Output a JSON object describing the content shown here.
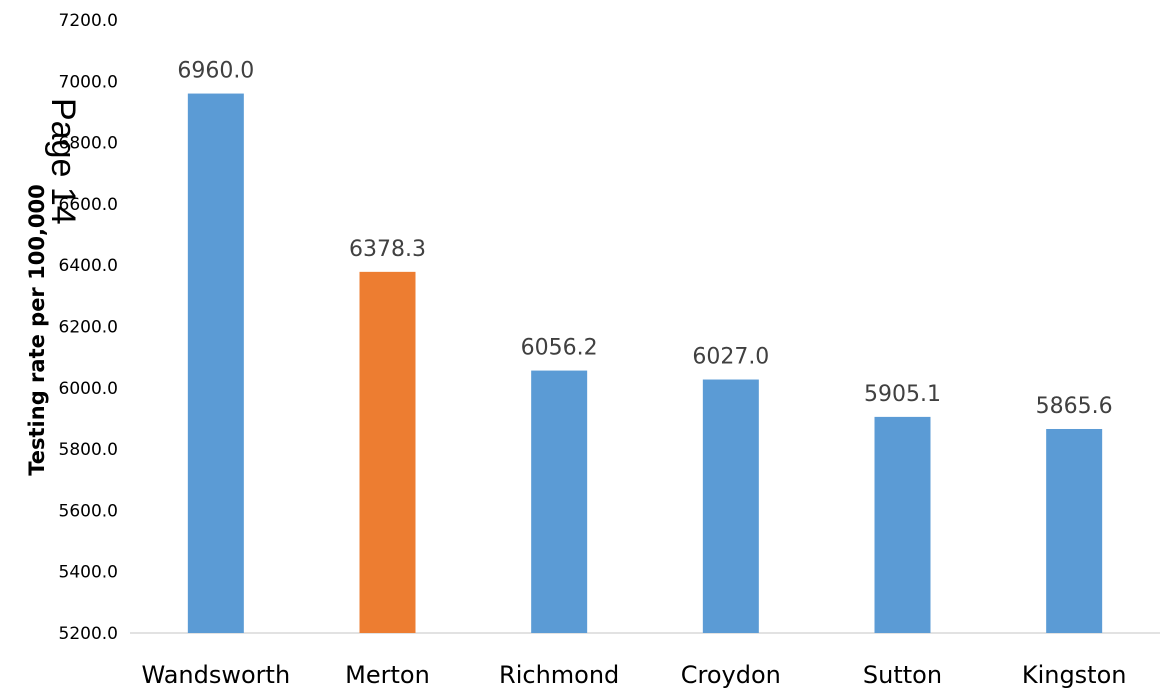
{
  "chart_data": {
    "type": "bar",
    "categories": [
      "Wandsworth",
      "Merton",
      "Richmond",
      "Croydon",
      "Sutton",
      "Kingston"
    ],
    "values": [
      6960.0,
      6378.3,
      6056.2,
      6027.0,
      5905.1,
      5865.6
    ],
    "data_labels": [
      "6960.0",
      "6378.3",
      "6056.2",
      "6027.0",
      "5905.1",
      "5865.6"
    ],
    "bar_colors": [
      "#5b9bd5",
      "#ed7d31",
      "#5b9bd5",
      "#5b9bd5",
      "#5b9bd5",
      "#5b9bd5"
    ],
    "ylabel": "Testing rate per 100,000",
    "xlabel": "",
    "ylim": [
      5200,
      7200
    ],
    "yticks": [
      "5200.0",
      "5400.0",
      "5600.0",
      "5800.0",
      "6000.0",
      "6200.0",
      "6400.0",
      "6600.0",
      "6800.0",
      "7000.0",
      "7200.0"
    ],
    "grid": false
  },
  "watermark": "Page 14"
}
